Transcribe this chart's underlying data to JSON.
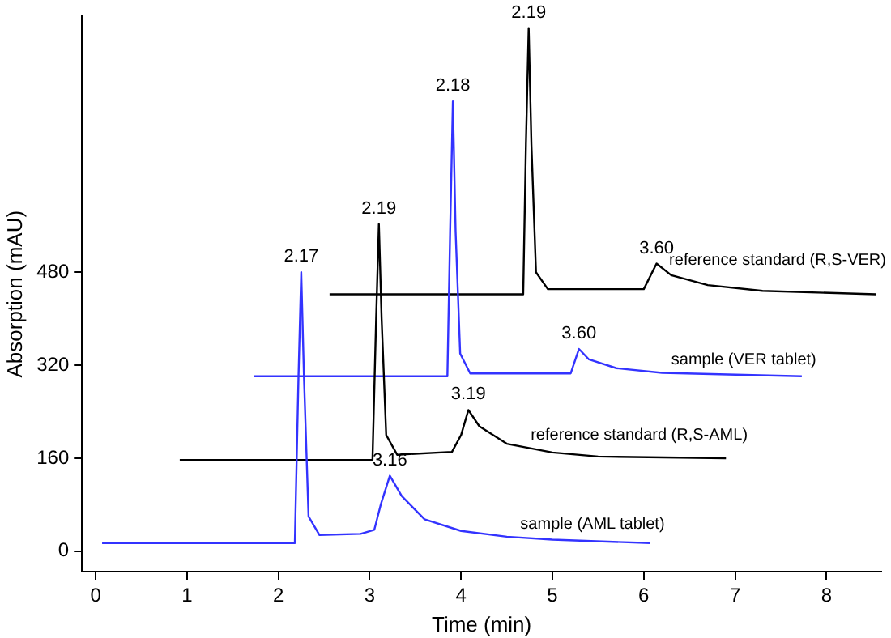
{
  "chart_data": {
    "type": "line",
    "xlabel": "Time (min)",
    "ylabel": "Absorption (mAU)",
    "xlim": [
      -0.15,
      8.6
    ],
    "xticks": [
      0,
      1,
      2,
      3,
      4,
      5,
      6,
      7,
      8
    ],
    "ylim": [
      -35,
      920
    ],
    "yticks": [
      0,
      160,
      320,
      480
    ],
    "grid": false,
    "legend": false,
    "marker": "none",
    "line_style": "solid",
    "series": [
      {
        "name": "sample (AML tablet)",
        "color": "#3333ff",
        "x": [
          0.07,
          2.18,
          2.22,
          2.25,
          2.28,
          2.33,
          2.45,
          2.9,
          3.05,
          3.12,
          3.22,
          3.35,
          3.6,
          4,
          4.5,
          5,
          6.07
        ],
        "values": [
          14,
          14,
          300,
          480,
          300,
          60,
          28,
          30,
          37,
          80,
          130,
          95,
          55,
          35,
          25,
          20,
          14
        ]
      },
      {
        "name": "reference standard (R,S-AML)",
        "color": "#000000",
        "x": [
          0.92,
          3.03,
          3.07,
          3.1,
          3.13,
          3.18,
          3.3,
          3.9,
          4.0,
          4.08,
          4.2,
          4.5,
          5,
          5.5,
          6.9
        ],
        "values": [
          157,
          157,
          400,
          563,
          400,
          200,
          166,
          171,
          200,
          243,
          215,
          185,
          170,
          163,
          160
        ]
      },
      {
        "name": "sample (VER tablet)",
        "color": "#3333ff",
        "x": [
          1.73,
          3.85,
          3.88,
          3.91,
          3.94,
          3.99,
          4.1,
          5.2,
          5.29,
          5.4,
          5.7,
          6.2,
          7.73
        ],
        "values": [
          301,
          301,
          550,
          774,
          550,
          340,
          306,
          306,
          348,
          330,
          315,
          307,
          301
        ]
      },
      {
        "name": "reference standard (R,S-VER)",
        "color": "#000000",
        "x": [
          2.56,
          4.68,
          4.71,
          4.74,
          4.77,
          4.82,
          4.95,
          6.0,
          6.14,
          6.3,
          6.7,
          7.3,
          8.54
        ],
        "values": [
          442,
          442,
          700,
          900,
          700,
          480,
          451,
          451,
          495,
          475,
          458,
          448,
          442
        ]
      }
    ],
    "annotations": [
      {
        "text": "2.17",
        "x": 2.25,
        "y": 480
      },
      {
        "text": "3.16",
        "x": 3.22,
        "y": 130
      },
      {
        "text": "2.19",
        "x": 3.1,
        "y": 563
      },
      {
        "text": "3.19",
        "x": 4.08,
        "y": 243
      },
      {
        "text": "2.18",
        "x": 3.91,
        "y": 774
      },
      {
        "text": "3.60",
        "x": 5.29,
        "y": 348
      },
      {
        "text": "2.19",
        "x": 4.74,
        "y": 900
      },
      {
        "text": "3.60",
        "x": 6.14,
        "y": 495
      }
    ]
  }
}
